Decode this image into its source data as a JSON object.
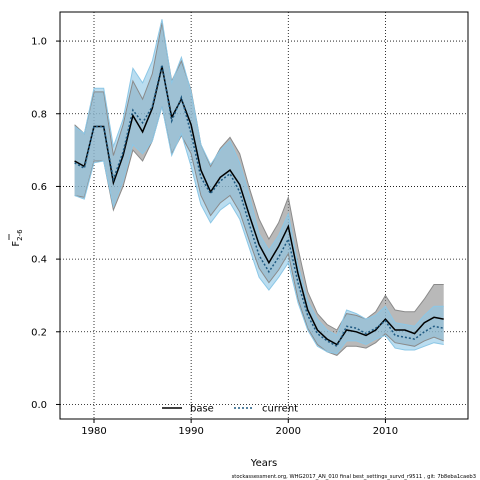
{
  "chart_data": {
    "type": "line",
    "xlabel": "Years",
    "ylabel_main": "F",
    "ylabel_sub": "2-6",
    "xlim": [
      1976.5,
      2018.5
    ],
    "ylim": [
      -0.04,
      1.08
    ],
    "xticks": [
      1980,
      1990,
      2000,
      2010
    ],
    "yticks": [
      0.0,
      0.2,
      0.4,
      0.6,
      0.8,
      1.0
    ],
    "ytick_labels": [
      "0.0",
      "0.2",
      "0.4",
      "0.6",
      "0.8",
      "1.0"
    ],
    "grid": true,
    "legend_position": "bottom-center",
    "x": [
      1978,
      1979,
      1980,
      1981,
      1982,
      1983,
      1984,
      1985,
      1986,
      1987,
      1988,
      1989,
      1990,
      1991,
      1992,
      1993,
      1994,
      1995,
      1996,
      1997,
      1998,
      1999,
      2000,
      2001,
      2002,
      2003,
      2004,
      2005,
      2006,
      2007,
      2008,
      2009,
      2010,
      2011,
      2012,
      2013,
      2014,
      2015,
      2016
    ],
    "series": [
      {
        "name": "base",
        "style": "solid",
        "color": "#000000",
        "band_color": "#8a8a8a",
        "values": [
          0.67,
          0.655,
          0.765,
          0.765,
          0.61,
          0.685,
          0.795,
          0.75,
          0.815,
          0.93,
          0.79,
          0.84,
          0.77,
          0.645,
          0.585,
          0.625,
          0.645,
          0.605,
          0.52,
          0.44,
          0.39,
          0.435,
          0.49,
          0.36,
          0.26,
          0.205,
          0.18,
          0.165,
          0.205,
          0.2,
          0.19,
          0.205,
          0.235,
          0.205,
          0.205,
          0.195,
          0.225,
          0.24,
          0.235
        ],
        "lower": [
          0.575,
          0.57,
          0.67,
          0.67,
          0.535,
          0.6,
          0.7,
          0.67,
          0.725,
          0.82,
          0.69,
          0.74,
          0.69,
          0.575,
          0.52,
          0.555,
          0.575,
          0.53,
          0.45,
          0.375,
          0.335,
          0.37,
          0.415,
          0.29,
          0.21,
          0.165,
          0.145,
          0.135,
          0.16,
          0.16,
          0.155,
          0.17,
          0.195,
          0.17,
          0.165,
          0.16,
          0.175,
          0.185,
          0.175
        ],
        "upper": [
          0.77,
          0.745,
          0.86,
          0.86,
          0.685,
          0.77,
          0.89,
          0.84,
          0.91,
          1.05,
          0.89,
          0.945,
          0.865,
          0.715,
          0.655,
          0.705,
          0.735,
          0.69,
          0.595,
          0.51,
          0.455,
          0.5,
          0.57,
          0.43,
          0.31,
          0.25,
          0.22,
          0.205,
          0.25,
          0.245,
          0.235,
          0.255,
          0.3,
          0.26,
          0.255,
          0.255,
          0.29,
          0.33,
          0.33
        ]
      },
      {
        "name": "current",
        "style": "dotted",
        "color": "#1f5a82",
        "band_color": "#8cc7e6",
        "values": [
          0.665,
          0.65,
          0.765,
          0.765,
          0.62,
          0.695,
          0.81,
          0.775,
          0.82,
          0.935,
          0.78,
          0.845,
          0.745,
          0.625,
          0.58,
          0.615,
          0.635,
          0.585,
          0.495,
          0.41,
          0.365,
          0.405,
          0.455,
          0.335,
          0.245,
          0.195,
          0.175,
          0.16,
          0.215,
          0.21,
          0.195,
          0.21,
          0.23,
          0.19,
          0.185,
          0.18,
          0.2,
          0.215,
          0.21
        ],
        "lower": [
          0.575,
          0.565,
          0.665,
          0.67,
          0.545,
          0.615,
          0.715,
          0.69,
          0.725,
          0.82,
          0.685,
          0.745,
          0.655,
          0.55,
          0.5,
          0.535,
          0.555,
          0.51,
          0.43,
          0.35,
          0.315,
          0.35,
          0.39,
          0.28,
          0.205,
          0.16,
          0.145,
          0.14,
          0.175,
          0.175,
          0.165,
          0.18,
          0.19,
          0.155,
          0.15,
          0.15,
          0.16,
          0.17,
          0.165
        ],
        "upper": [
          0.765,
          0.745,
          0.87,
          0.87,
          0.71,
          0.785,
          0.925,
          0.885,
          0.945,
          1.06,
          0.885,
          0.955,
          0.86,
          0.715,
          0.66,
          0.7,
          0.725,
          0.665,
          0.575,
          0.47,
          0.425,
          0.465,
          0.525,
          0.385,
          0.285,
          0.235,
          0.205,
          0.19,
          0.26,
          0.25,
          0.235,
          0.245,
          0.27,
          0.225,
          0.22,
          0.215,
          0.245,
          0.27,
          0.27
        ]
      }
    ]
  },
  "footer": "stockassessment.org, WHG2017_AN_010 final best_settings_survd_r9511 , git: 7b8eba1caeb3"
}
